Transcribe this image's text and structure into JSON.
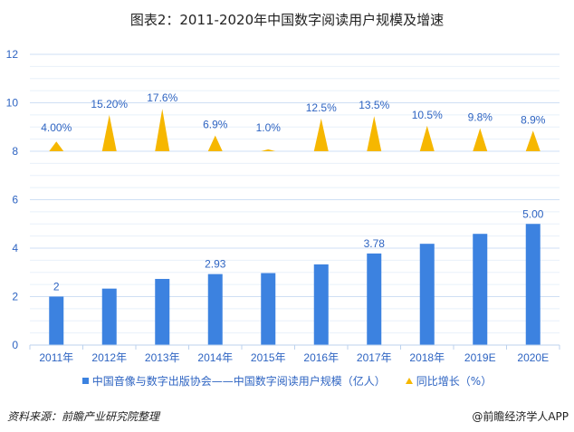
{
  "title": "图表2：2011-2020年中国数字阅读用户规模及增速",
  "legend": {
    "bar_label": "中国音像与数字出版协会——中国数字阅读用户规模（亿人）",
    "line_label": "同比增长（%）"
  },
  "footer": {
    "source": "资料来源：前瞻产业研究院整理",
    "credit": "@前瞻经济学人APP"
  },
  "colors": {
    "bar": "#3c82e0",
    "triangle": "#f6b700",
    "label": "#2e64c2",
    "grid": "#dbe7f7"
  },
  "chart_data": {
    "type": "bar",
    "title": "图表2：2011-2020年中国数字阅读用户规模及增速",
    "xlabel": "",
    "ylabel": "",
    "ylim": [
      0,
      12
    ],
    "yticks": [
      0,
      2,
      4,
      6,
      8,
      10,
      12
    ],
    "grid": true,
    "legend_position": "bottom",
    "categories": [
      "2011年",
      "2012年",
      "2013年",
      "2014年",
      "2015年",
      "2016年",
      "2017年",
      "2018年",
      "2019E",
      "2020E"
    ],
    "series": [
      {
        "name": "中国音像与数字出版协会——中国数字阅读用户规模（亿人）",
        "type": "bar",
        "values": [
          2.0,
          2.33,
          2.73,
          2.93,
          2.97,
          3.33,
          3.78,
          4.18,
          4.59,
          5.0
        ],
        "data_labels": [
          "2",
          "",
          "",
          "2.93",
          "",
          "",
          "3.78",
          "",
          "",
          "5.00"
        ]
      },
      {
        "name": "同比增长（%）",
        "type": "triangle-marker",
        "values": [
          4.0,
          15.2,
          17.6,
          6.9,
          1.0,
          12.5,
          13.5,
          10.5,
          9.8,
          8.9
        ],
        "data_labels": [
          "4.00%",
          "15.20%",
          "17.6%",
          "6.9%",
          "1.0%",
          "12.5%",
          "13.5%",
          "10.5%",
          "9.8%",
          "8.9%"
        ],
        "marker_tops_on_axis": [
          8.4,
          9.5,
          9.75,
          8.65,
          8.08,
          9.35,
          9.45,
          9.05,
          8.95,
          8.85
        ]
      }
    ]
  }
}
